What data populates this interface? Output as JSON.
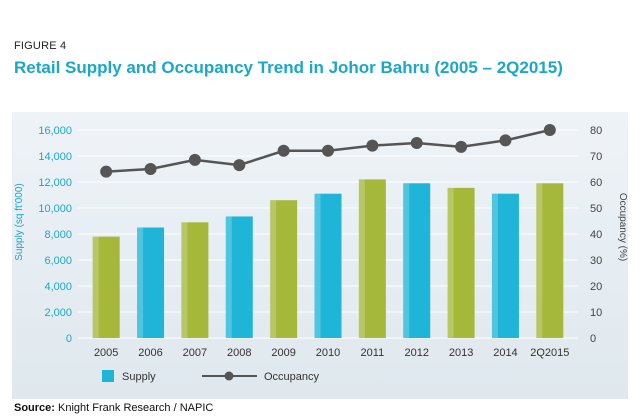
{
  "figure_label": "FIGURE 4",
  "title": "Retail  Supply and Occupancy Trend in Johor Bahru (2005 – 2Q2015)",
  "source": {
    "label": "Source:",
    "text": "Knight Frank Research / NAPIC"
  },
  "colors": {
    "supply_green": "#a5b83a",
    "supply_blue": "#1fb5d8",
    "occupancy_line": "#555555",
    "left_axis_text": "#1aa7c8",
    "title": "#1aa7c8"
  },
  "chart_data": {
    "type": "bar",
    "title": "Retail  Supply and Occupancy Trend in Johor Bahru (2005 – 2Q2015)",
    "categories": [
      "2005",
      "2006",
      "2007",
      "2008",
      "2009",
      "2010",
      "2011",
      "2012",
      "2013",
      "2014",
      "2Q2015"
    ],
    "series": [
      {
        "name": "Supply",
        "type": "bar",
        "axis": "left",
        "values": [
          7800,
          8500,
          8900,
          9350,
          10600,
          11100,
          12200,
          11900,
          11550,
          11100,
          11900
        ],
        "colors": [
          "#a5b83a",
          "#1fb5d8",
          "#a5b83a",
          "#1fb5d8",
          "#a5b83a",
          "#1fb5d8",
          "#a5b83a",
          "#1fb5d8",
          "#a5b83a",
          "#1fb5d8",
          "#a5b83a"
        ]
      },
      {
        "name": "Occupancy",
        "type": "line",
        "axis": "right",
        "values": [
          64,
          65,
          68.5,
          66.5,
          72,
          72,
          74,
          75,
          73.5,
          76,
          80
        ]
      }
    ],
    "ylabel": "Supply (sq ft'000)",
    "ylabel_right": "Occupancy (%)",
    "ylim": [
      0,
      16000
    ],
    "yticks": [
      "0",
      "2,000",
      "4,000",
      "6,000",
      "8,000",
      "10,000",
      "12,000",
      "14,000",
      "16,000"
    ],
    "ylim_right": [
      0,
      80
    ],
    "yticks_right": [
      "0",
      "10",
      "20",
      "30",
      "40",
      "50",
      "60",
      "70",
      "80"
    ],
    "grid": true,
    "legend_position": "bottom-left"
  }
}
